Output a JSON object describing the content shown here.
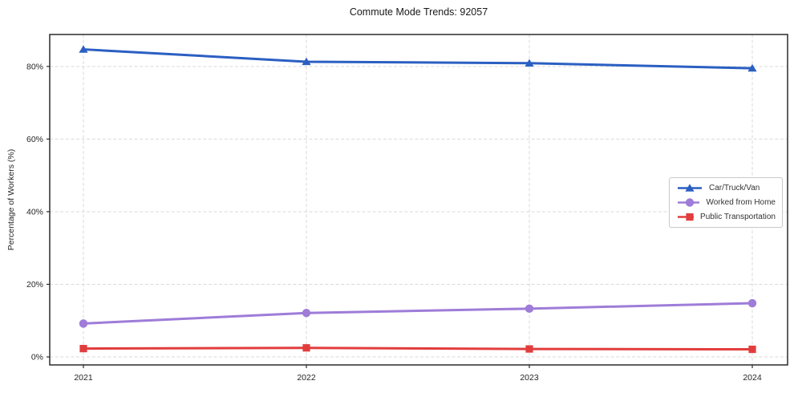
{
  "chart_data": {
    "type": "line",
    "title": "Commute Mode Trends: 92057",
    "xlabel": "",
    "ylabel": "Percentage of Workers (%)",
    "categories": [
      "2021",
      "2022",
      "2023",
      "2024"
    ],
    "ytick_labels": [
      "0%",
      "20%",
      "40%",
      "60%",
      "80%"
    ],
    "ytick_values": [
      0,
      20,
      40,
      60,
      80
    ],
    "ylim": [
      -2.2,
      88.8
    ],
    "grid": "dashed-both-axes",
    "legend_position": "center-right",
    "series": [
      {
        "name": "Car/Truck/Van",
        "color": "#2b5fc2",
        "marker": "triangle",
        "values": [
          84.7,
          81.3,
          80.9,
          79.5
        ]
      },
      {
        "name": "Worked from Home",
        "color": "#9e7cd8",
        "marker": "circle",
        "values": [
          9.2,
          12.1,
          13.3,
          14.8
        ]
      },
      {
        "name": "Public Transportation",
        "color": "#e23d3d",
        "marker": "square",
        "values": [
          2.3,
          2.5,
          2.2,
          2.1
        ]
      }
    ]
  },
  "style_colors": {
    "grid": "#d9d9d9",
    "spine": "#2b2b2b",
    "background": "#ffffff",
    "legend_border": "#c9c9c9"
  }
}
